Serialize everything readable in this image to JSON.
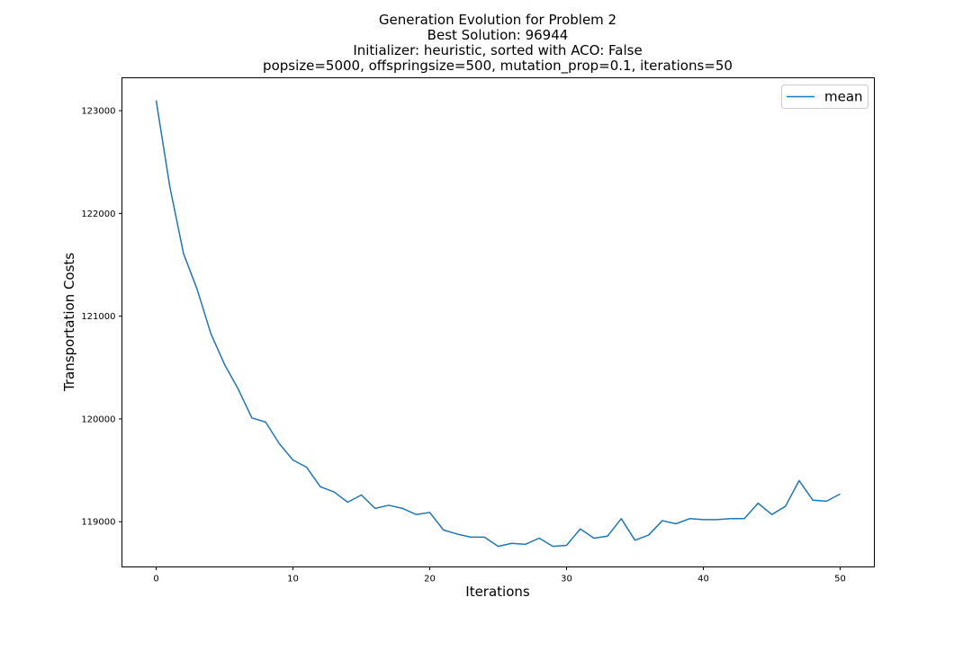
{
  "chart_data": {
    "type": "line",
    "title": [
      "Generation Evolution for Problem 2",
      "Best Solution: 96944",
      "Initializer: heuristic, sorted with ACO: False",
      "popsize=5000, offspringsize=500, mutation_prop=0.1, iterations=50"
    ],
    "xlabel": "Iterations",
    "ylabel": "Transportation Costs",
    "xlim": [
      -2.5,
      52.5
    ],
    "ylim": [
      118560,
      123320
    ],
    "xticks": [
      0,
      10,
      20,
      30,
      40,
      50
    ],
    "yticks": [
      119000,
      120000,
      121000,
      122000,
      123000
    ],
    "grid": false,
    "legend_position": "top-right",
    "series": [
      {
        "name": "mean",
        "color": "#1f77b4",
        "x": [
          0,
          1,
          2,
          3,
          4,
          5,
          6,
          7,
          8,
          9,
          10,
          11,
          12,
          13,
          14,
          15,
          16,
          17,
          18,
          19,
          20,
          21,
          22,
          23,
          24,
          25,
          26,
          27,
          28,
          29,
          30,
          31,
          32,
          33,
          34,
          35,
          36,
          37,
          38,
          39,
          40,
          41,
          42,
          43,
          44,
          45,
          46,
          47,
          48,
          49,
          50
        ],
        "values": [
          123100,
          122260,
          121610,
          121260,
          120830,
          120530,
          120290,
          120010,
          119970,
          119760,
          119600,
          119530,
          119340,
          119290,
          119190,
          119260,
          119130,
          119160,
          119130,
          119070,
          119090,
          118920,
          118880,
          118850,
          118850,
          118760,
          118790,
          118780,
          118840,
          118760,
          118770,
          118930,
          118840,
          118860,
          119030,
          118820,
          118870,
          119010,
          118980,
          119030,
          119020,
          119020,
          119030,
          119030,
          119180,
          119070,
          119150,
          119400,
          119210,
          119200,
          119270
        ]
      }
    ]
  }
}
